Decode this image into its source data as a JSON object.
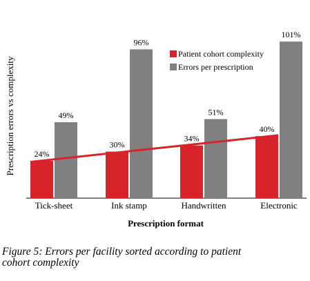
{
  "chart_data": {
    "type": "bar",
    "categories": [
      "Tick-sheet",
      "Ink stamp",
      "Handwritten",
      "Electronic"
    ],
    "series": [
      {
        "name": "Patient cohort complexity",
        "values": [
          24,
          30,
          34,
          40
        ],
        "labels": [
          "24%",
          "30%",
          "34%",
          "40%"
        ],
        "color": "#d9232a"
      },
      {
        "name": "Errors per prescription",
        "values": [
          49,
          96,
          51,
          101
        ],
        "labels": [
          "49%",
          "96%",
          "51%",
          "101%"
        ],
        "color": "#808080"
      }
    ],
    "trendline": {
      "series": "Patient cohort complexity",
      "color": "#d9232a"
    },
    "xlabel": "Prescription format",
    "ylabel": "Prescription errors vs complexity",
    "ylim": [
      0,
      110
    ],
    "grid": false,
    "legend": "top-right"
  },
  "caption": {
    "line1": "Figure 5: Errors per facility sorted according to patient",
    "line2": "cohort complexity"
  }
}
